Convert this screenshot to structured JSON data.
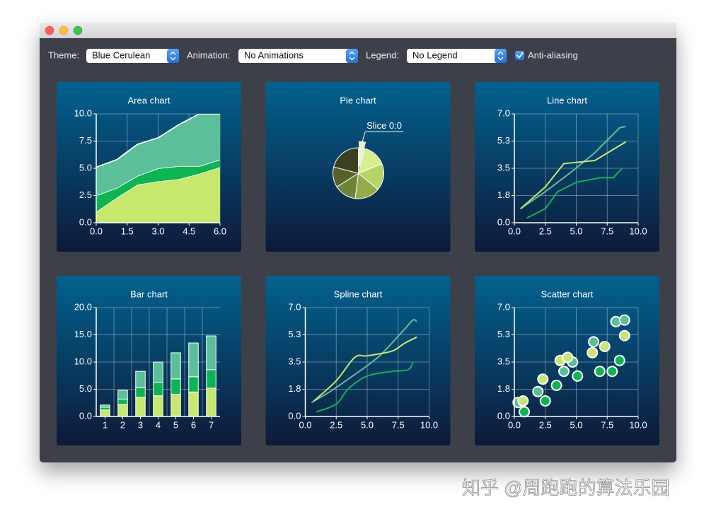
{
  "toolbar": {
    "theme_label": "Theme:",
    "theme_value": "Blue Cerulean",
    "animation_label": "Animation:",
    "animation_value": "No Animations",
    "legend_label": "Legend:",
    "legend_value": "No Legend",
    "antialiasing_label": "Anti-aliasing",
    "antialiasing_checked": true
  },
  "chart_data": [
    {
      "type": "area",
      "title": "Area chart",
      "x": [
        0,
        1,
        2,
        3,
        4,
        5,
        6
      ],
      "series": [
        {
          "color": "#c7e86c",
          "values": [
            1.0,
            2.3,
            3.5,
            3.8,
            4.0,
            4.5,
            5.1
          ]
        },
        {
          "color": "#0db552",
          "values": [
            1.5,
            0.9,
            0.8,
            1.2,
            1.2,
            0.7,
            0.7
          ]
        },
        {
          "color": "#5bbf99",
          "values": [
            2.6,
            2.6,
            2.9,
            2.8,
            3.8,
            4.8,
            4.2
          ]
        }
      ],
      "xlim": [
        0,
        6
      ],
      "xticks": [
        {
          "value": 0,
          "label": "0.0"
        },
        {
          "value": 1.5,
          "label": "1.5"
        },
        {
          "value": 3,
          "label": "3.0"
        },
        {
          "value": 4.5,
          "label": "4.5"
        },
        {
          "value": 6,
          "label": "6.0"
        }
      ],
      "ylim": [
        0,
        10
      ],
      "yticks": [
        {
          "value": 0,
          "label": "0.0"
        },
        {
          "value": 2.5,
          "label": "2.5"
        },
        {
          "value": 5,
          "label": "5.0"
        },
        {
          "value": 7.5,
          "label": "7.5"
        },
        {
          "value": 10,
          "label": "10.0"
        }
      ],
      "grid": true
    },
    {
      "type": "pie",
      "title": "Pie chart",
      "slices": [
        {
          "value": 4,
          "color": "#eaf8c4",
          "label": "Slice 0:0",
          "exploded": true
        },
        {
          "value": 15,
          "color": "#d6ef8e"
        },
        {
          "value": 17,
          "color": "#b5d463"
        },
        {
          "value": 16,
          "color": "#93ab48"
        },
        {
          "value": 14,
          "color": "#6f8236"
        },
        {
          "value": 13,
          "color": "#55622a"
        },
        {
          "value": 21,
          "color": "#3a4020"
        }
      ]
    },
    {
      "type": "line",
      "title": "Line chart",
      "series": [
        {
          "color": "#5bbf99",
          "x": [
            0.5,
            2.5,
            4.5,
            6.5,
            8.5,
            9
          ],
          "values": [
            0.9,
            2.0,
            3.2,
            4.5,
            6.1,
            6.2
          ]
        },
        {
          "color": "#c7e86c",
          "x": [
            0.5,
            2.5,
            4,
            6.5,
            9
          ],
          "values": [
            0.9,
            2.3,
            3.8,
            4.0,
            5.2
          ]
        },
        {
          "color": "#0db552",
          "x": [
            1,
            2.5,
            3.5,
            5,
            7,
            8,
            8.7
          ],
          "values": [
            0.3,
            0.9,
            2.0,
            2.6,
            2.9,
            2.9,
            3.5
          ]
        }
      ],
      "xlim": [
        0,
        10
      ],
      "xticks": [
        {
          "value": 0,
          "label": "0.0"
        },
        {
          "value": 2.5,
          "label": "2.5"
        },
        {
          "value": 5,
          "label": "5.0"
        },
        {
          "value": 7.5,
          "label": "7.5"
        },
        {
          "value": 10,
          "label": "10.0"
        }
      ],
      "ylim": [
        0,
        7
      ],
      "yticks": [
        {
          "value": 0,
          "label": "0.0"
        },
        {
          "value": 1.75,
          "label": "1.8"
        },
        {
          "value": 3.5,
          "label": "3.5"
        },
        {
          "value": 5.25,
          "label": "5.3"
        },
        {
          "value": 7,
          "label": "7.0"
        }
      ],
      "grid": true
    },
    {
      "type": "stacked_bar",
      "title": "Bar chart",
      "categories": [
        "1",
        "2",
        "3",
        "4",
        "5",
        "6",
        "7"
      ],
      "series": [
        {
          "color": "#c7e86c",
          "values": [
            1.2,
            2.2,
            3.5,
            3.8,
            4.1,
            4.5,
            5.2
          ]
        },
        {
          "color": "#0db552",
          "values": [
            0.5,
            1.0,
            1.8,
            2.5,
            2.8,
            2.8,
            3.4
          ]
        },
        {
          "color": "#5bbf99",
          "values": [
            0.4,
            1.6,
            3.0,
            3.7,
            4.8,
            6.2,
            6.2
          ]
        }
      ],
      "ylim": [
        0,
        20
      ],
      "yticks": [
        {
          "value": 0,
          "label": "0.0"
        },
        {
          "value": 5,
          "label": "5.0"
        },
        {
          "value": 10,
          "label": "10.0"
        },
        {
          "value": 15,
          "label": "15.0"
        },
        {
          "value": 20,
          "label": "20.0"
        }
      ],
      "grid": true
    },
    {
      "type": "spline",
      "title": "Spline chart",
      "series": [
        {
          "color": "#5bbf99",
          "x": [
            0.5,
            2,
            4,
            6,
            8,
            8.7,
            9
          ],
          "values": [
            0.9,
            1.6,
            2.7,
            3.9,
            5.6,
            6.2,
            6.1
          ]
        },
        {
          "color": "#c7e86c",
          "x": [
            0.7,
            2.5,
            4,
            5,
            7,
            8,
            9
          ],
          "values": [
            1.0,
            2.3,
            3.8,
            3.9,
            4.2,
            4.7,
            5.1
          ]
        },
        {
          "color": "#0db552",
          "x": [
            0.9,
            2.5,
            3.5,
            5,
            7,
            8.3,
            8.7
          ],
          "values": [
            0.3,
            0.8,
            1.8,
            2.6,
            2.9,
            3.0,
            3.5
          ]
        }
      ],
      "xlim": [
        0,
        10
      ],
      "xticks": [
        {
          "value": 0,
          "label": "0.0"
        },
        {
          "value": 2.5,
          "label": "2.5"
        },
        {
          "value": 5,
          "label": "5.0"
        },
        {
          "value": 7.5,
          "label": "7.5"
        },
        {
          "value": 10,
          "label": "10.0"
        }
      ],
      "ylim": [
        0,
        7
      ],
      "yticks": [
        {
          "value": 0,
          "label": "0.0"
        },
        {
          "value": 1.75,
          "label": "1.8"
        },
        {
          "value": 3.5,
          "label": "3.5"
        },
        {
          "value": 5.25,
          "label": "5.3"
        },
        {
          "value": 7,
          "label": "7.0"
        }
      ],
      "grid": true
    },
    {
      "type": "scatter",
      "title": "Scatter chart",
      "series": [
        {
          "color": "#5bbf99",
          "x": [
            0.3,
            1.9,
            4.0,
            4.7,
            6.4,
            8.2,
            8.9
          ],
          "values": [
            0.9,
            1.6,
            2.9,
            3.5,
            4.8,
            6.1,
            6.2
          ]
        },
        {
          "color": "#c7e86c",
          "x": [
            0.7,
            2.3,
            3.7,
            4.3,
            6.3,
            7.3,
            8.9
          ],
          "values": [
            1.0,
            2.4,
            3.6,
            3.8,
            4.1,
            4.5,
            5.2
          ]
        },
        {
          "color": "#0db552",
          "x": [
            0.8,
            2.5,
            3.4,
            5.1,
            6.9,
            7.9,
            8.5
          ],
          "values": [
            0.3,
            1.0,
            2.0,
            2.6,
            2.9,
            2.9,
            3.6
          ]
        }
      ],
      "xlim": [
        0,
        10
      ],
      "xticks": [
        {
          "value": 0,
          "label": "0.0"
        },
        {
          "value": 2.5,
          "label": "2.5"
        },
        {
          "value": 5,
          "label": "5.0"
        },
        {
          "value": 7.5,
          "label": "7.5"
        },
        {
          "value": 10,
          "label": "10.0"
        }
      ],
      "ylim": [
        0,
        7
      ],
      "yticks": [
        {
          "value": 0,
          "label": "0.0"
        },
        {
          "value": 1.75,
          "label": "1.8"
        },
        {
          "value": 3.5,
          "label": "3.5"
        },
        {
          "value": 5.25,
          "label": "5.3"
        },
        {
          "value": 7,
          "label": "7.0"
        }
      ],
      "grid": true
    }
  ],
  "watermark": "知乎 @周跑跑的算法乐园"
}
